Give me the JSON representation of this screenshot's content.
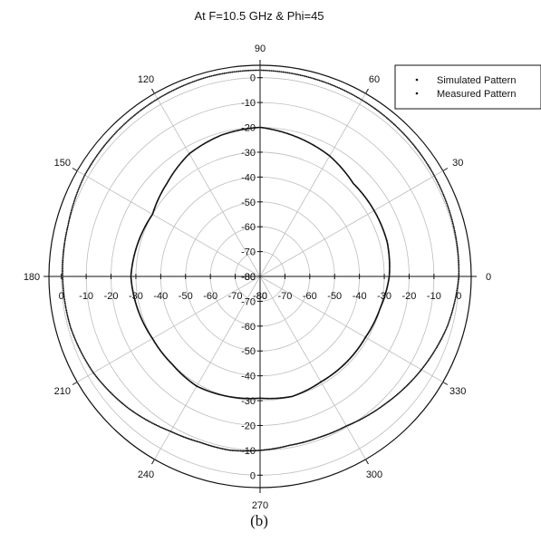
{
  "chart_data": {
    "type": "scatter",
    "polar": true,
    "title": "At F=10.5 GHz & Phi=45",
    "caption": "(b)",
    "radial_axis": {
      "min": -80,
      "max": 5,
      "ticks": [
        0,
        -10,
        -20,
        -30,
        -40,
        -50,
        -60,
        -70,
        -80
      ]
    },
    "angular_axis": {
      "unit": "degree",
      "ticks": [
        0,
        30,
        60,
        90,
        120,
        150,
        180,
        210,
        240,
        270,
        300,
        330
      ]
    },
    "grid": true,
    "legend_position": "top-right",
    "legend": [
      "Simulated Pattern",
      "Measured Pattern"
    ],
    "series": [
      {
        "name": "Simulated Pattern",
        "theta": [
          0,
          15,
          30,
          45,
          60,
          75,
          90,
          105,
          120,
          135,
          150,
          165,
          180,
          195,
          210,
          225,
          240,
          250,
          260,
          270,
          280,
          290,
          300,
          315,
          330,
          345,
          360
        ],
        "r": [
          0,
          0.5,
          1,
          1.5,
          2,
          2.5,
          3,
          3,
          2.5,
          2,
          1.5,
          0,
          -0.5,
          -1,
          -2.5,
          -5,
          -8,
          -9,
          -9,
          -10,
          -11,
          -11,
          -10.5,
          -8,
          -5,
          -2,
          0
        ]
      },
      {
        "name": "Measured Pattern",
        "theta": [
          0,
          15,
          30,
          45,
          60,
          75,
          90,
          105,
          120,
          135,
          150,
          165,
          180,
          195,
          210,
          225,
          240,
          255,
          270,
          285,
          300,
          315,
          330,
          345,
          360
        ],
        "r": [
          -28,
          -27,
          -27,
          -27,
          -24,
          -22,
          -20,
          -21,
          -23,
          -27,
          -30,
          -29,
          -28,
          -29,
          -30,
          -30,
          -29,
          -30,
          -31,
          -30,
          -31,
          -31,
          -31,
          -30,
          -28
        ]
      }
    ]
  }
}
